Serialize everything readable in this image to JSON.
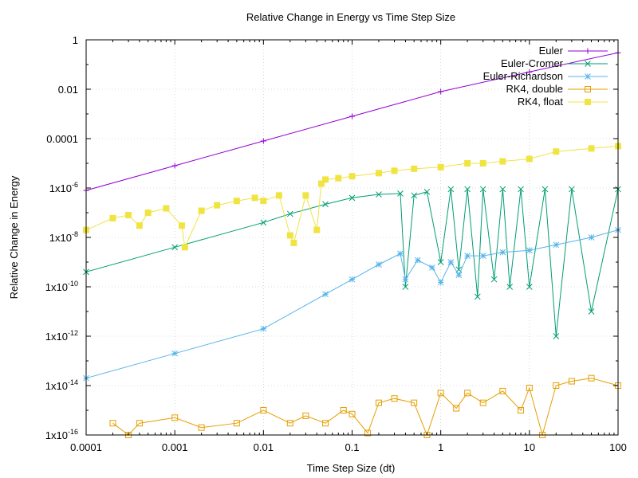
{
  "chart_data": {
    "type": "line",
    "title": "Relative Change in Energy vs Time Step Size",
    "xlabel": "Time Step Size (dt)",
    "ylabel": "Relative Change in Energy",
    "xscale": "log",
    "yscale": "log",
    "xlim": [
      0.0001,
      100
    ],
    "ylim": [
      1e-16,
      1
    ],
    "grid": true,
    "legend_position": "top-right",
    "x_ticks": [
      {
        "value": 0.0001,
        "label": "0.0001"
      },
      {
        "value": 0.001,
        "label": "0.001"
      },
      {
        "value": 0.01,
        "label": "0.01"
      },
      {
        "value": 0.1,
        "label": "0.1"
      },
      {
        "value": 1,
        "label": "1"
      },
      {
        "value": 10,
        "label": "10"
      },
      {
        "value": 100,
        "label": "100"
      }
    ],
    "y_ticks": [
      {
        "value": 1,
        "label": "1",
        "exp": ""
      },
      {
        "value": 0.01,
        "label": "0.01",
        "exp": ""
      },
      {
        "value": 0.0001,
        "label": "0.0001",
        "exp": ""
      },
      {
        "value": 1e-06,
        "label": "1x10",
        "exp": "-6"
      },
      {
        "value": 1e-08,
        "label": "1x10",
        "exp": "-8"
      },
      {
        "value": 1e-10,
        "label": "1x10",
        "exp": "-10"
      },
      {
        "value": 1e-12,
        "label": "1x10",
        "exp": "-12"
      },
      {
        "value": 1e-14,
        "label": "1x10",
        "exp": "-14"
      },
      {
        "value": 1e-16,
        "label": "1x10",
        "exp": "-16"
      }
    ],
    "series": [
      {
        "name": "Euler",
        "color": "#9400d3",
        "marker": "plus",
        "x": [
          0.0001,
          0.001,
          0.01,
          0.1,
          1,
          10,
          100
        ],
        "y": [
          8e-07,
          8e-06,
          8e-05,
          0.0008,
          0.008,
          0.05,
          0.3
        ]
      },
      {
        "name": "Euler-Cromer",
        "color": "#009e73",
        "marker": "x",
        "x": [
          0.0001,
          0.001,
          0.01,
          0.02,
          0.05,
          0.1,
          0.2,
          0.35,
          0.4,
          0.5,
          0.7,
          1,
          1.3,
          1.6,
          2,
          2.6,
          3,
          4,
          5,
          6,
          8,
          10,
          15,
          20,
          30,
          50,
          100
        ],
        "y": [
          4e-10,
          4e-09,
          4e-08,
          9e-08,
          2.2e-07,
          4e-07,
          5.5e-07,
          6e-07,
          1e-10,
          5e-07,
          7e-07,
          1e-09,
          9e-07,
          5e-10,
          9e-07,
          4e-11,
          9e-07,
          2e-10,
          9e-07,
          1e-10,
          9e-07,
          1e-10,
          9e-07,
          1e-12,
          9e-07,
          1e-11,
          9e-07
        ]
      },
      {
        "name": "Euler-Richardson",
        "color": "#56b4e9",
        "marker": "star",
        "x": [
          0.0001,
          0.001,
          0.01,
          0.05,
          0.1,
          0.2,
          0.35,
          0.4,
          0.55,
          0.8,
          1,
          1.3,
          1.6,
          2,
          3,
          5,
          10,
          20,
          50,
          100
        ],
        "y": [
          2e-14,
          2e-13,
          2e-12,
          5e-11,
          2e-10,
          8e-10,
          2.2e-09,
          2e-10,
          1.2e-09,
          6e-10,
          1.5e-10,
          1e-09,
          3e-10,
          1.8e-09,
          1.8e-09,
          2.5e-09,
          3e-09,
          5e-09,
          1e-08,
          2e-08
        ]
      },
      {
        "name": "RK4, double",
        "color": "#e69f00",
        "marker": "square-open",
        "x": [
          0.0002,
          0.0003,
          0.0004,
          0.001,
          0.002,
          0.005,
          0.01,
          0.02,
          0.03,
          0.05,
          0.08,
          0.1,
          0.15,
          0.2,
          0.3,
          0.5,
          0.7,
          1,
          1.5,
          2,
          3,
          5,
          8,
          10,
          14,
          20,
          30,
          50,
          100
        ],
        "y": [
          3e-16,
          1e-16,
          3e-16,
          5e-16,
          2e-16,
          3e-16,
          1e-15,
          3e-16,
          6e-16,
          3e-16,
          1e-15,
          7e-16,
          1.2e-16,
          2e-15,
          3e-15,
          2e-15,
          1e-16,
          5e-15,
          1.2e-15,
          5e-15,
          2e-15,
          6e-15,
          1e-15,
          8e-15,
          1e-16,
          1e-14,
          1.5e-14,
          2e-14,
          1e-14
        ]
      },
      {
        "name": "RK4, float",
        "color": "#f0e442",
        "marker": "square-filled",
        "x": [
          0.0001,
          0.0002,
          0.0003,
          0.0004,
          0.0005,
          0.0008,
          0.0012,
          0.0013,
          0.002,
          0.003,
          0.005,
          0.008,
          0.01,
          0.015,
          0.02,
          0.022,
          0.03,
          0.04,
          0.045,
          0.05,
          0.07,
          0.1,
          0.2,
          0.3,
          0.5,
          1,
          2,
          3,
          5,
          10,
          20,
          50,
          100
        ],
        "y": [
          2e-08,
          6e-08,
          8e-08,
          3e-08,
          1e-07,
          1.5e-07,
          3e-08,
          4e-09,
          1.2e-07,
          2e-07,
          3e-07,
          4e-07,
          3e-07,
          5e-07,
          1.2e-08,
          6e-09,
          5e-07,
          2e-08,
          1.5e-06,
          2.2e-06,
          2.5e-06,
          3e-06,
          4e-06,
          5e-06,
          6e-06,
          7e-06,
          1e-05,
          1e-05,
          1.2e-05,
          1.5e-05,
          3e-05,
          4e-05,
          5e-05
        ]
      }
    ]
  }
}
